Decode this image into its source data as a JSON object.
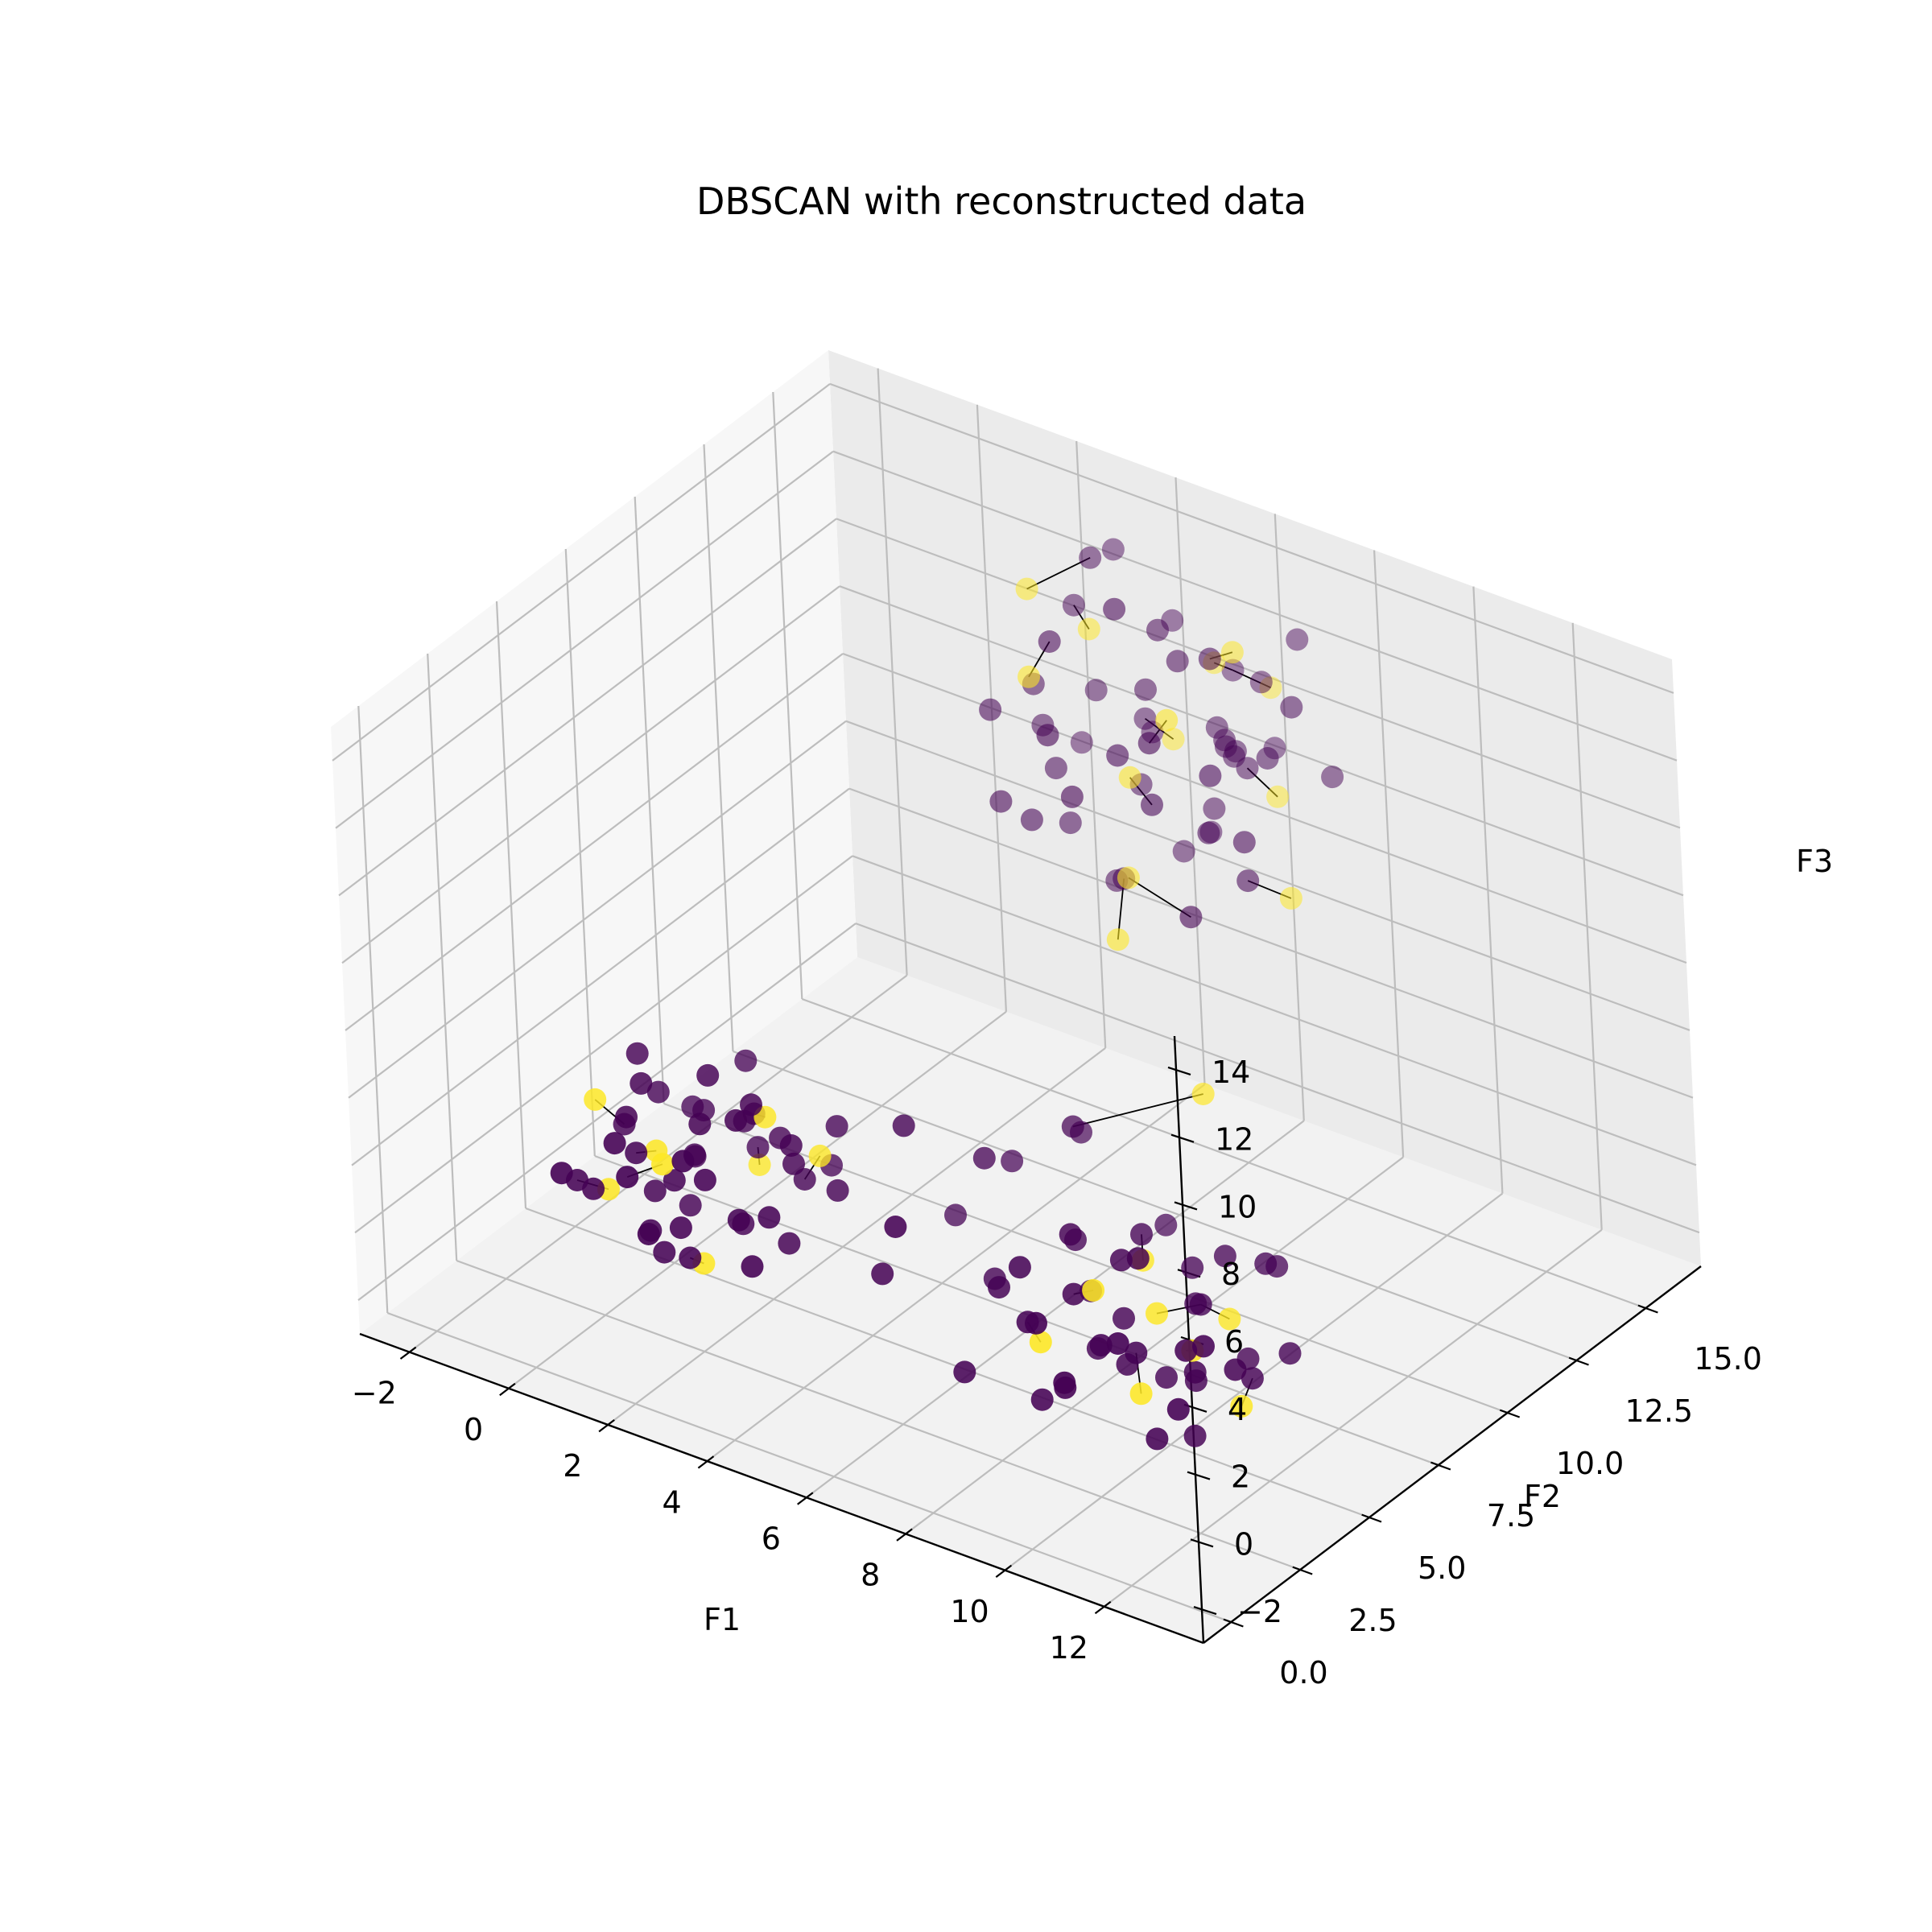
{
  "chart_data": {
    "type": "scatter",
    "projection": "3d",
    "title": "DBSCAN with reconstructed data",
    "xlabel": "F1",
    "ylabel": "F2",
    "zlabel": "F3",
    "xlim": [
      -3,
      14
    ],
    "ylim": [
      -1,
      17
    ],
    "zlim": [
      -3,
      15
    ],
    "xticks": [
      -2,
      0,
      2,
      4,
      6,
      8,
      10,
      12
    ],
    "xtick_labels": [
      "−2",
      "0",
      "2",
      "4",
      "6",
      "8",
      "10",
      "12"
    ],
    "yticks": [
      0,
      2.5,
      5,
      7.5,
      10,
      12.5,
      15
    ],
    "ytick_labels": [
      "0.0",
      "2.5",
      "5.0",
      "7.5",
      "10.0",
      "12.5",
      "15.0"
    ],
    "zticks": [
      -2,
      0,
      2,
      4,
      6,
      8,
      10,
      12,
      14
    ],
    "ztick_labels": [
      "−2",
      "0",
      "2",
      "4",
      "6",
      "8",
      "10",
      "12",
      "14"
    ],
    "grid": true,
    "colors": {
      "cluster": "#440154",
      "noise": "#fde725",
      "link": "#000000"
    },
    "series": [
      {
        "color": "#440154",
        "points": [
          [
            0.6,
            3.2,
            -0.6
          ],
          [
            -0.3,
            2.8,
            0.4
          ],
          [
            0.2,
            4.1,
            -0.2
          ],
          [
            0.9,
            3.6,
            0.8
          ],
          [
            1.4,
            2.9,
            0.1
          ],
          [
            -0.6,
            4.5,
            1.1
          ],
          [
            0.4,
            5.2,
            0.3
          ],
          [
            1.8,
            4.4,
            -0.5
          ],
          [
            1.1,
            5.8,
            1.3
          ],
          [
            -0.2,
            3.9,
            1.9
          ],
          [
            2.3,
            3.4,
            0.5
          ],
          [
            0.7,
            2.3,
            1.6
          ],
          [
            1.6,
            5.3,
            2.1
          ],
          [
            0.1,
            6.1,
            0.9
          ],
          [
            2.6,
            4.9,
            1.4
          ],
          [
            -0.8,
            3.1,
            0.2
          ],
          [
            1.3,
            3.9,
            2.5
          ],
          [
            0.5,
            4.8,
            -0.9
          ],
          [
            2.0,
            2.8,
            1.9
          ],
          [
            -0.4,
            5.4,
            1.6
          ],
          [
            2.9,
            4.1,
            -0.3
          ],
          [
            1.0,
            6.4,
            0.1
          ],
          [
            0.3,
            2.6,
            2.2
          ],
          [
            1.7,
            6.0,
            1.0
          ],
          [
            3.1,
            3.1,
            1.2
          ],
          [
            -0.1,
            4.3,
            2.7
          ],
          [
            2.4,
            5.6,
            0.4
          ],
          [
            0.8,
            3.3,
            -1.2
          ],
          [
            1.9,
            4.7,
            2.9
          ],
          [
            -0.7,
            2.4,
            0.9
          ],
          [
            2.7,
            6.3,
            1.7
          ],
          [
            1.2,
            2.1,
            0.3
          ],
          [
            0.0,
            5.9,
            -0.4
          ],
          [
            3.3,
            5.2,
            0.8
          ],
          [
            2.1,
            3.8,
            3.1
          ],
          [
            0.6,
            6.8,
            2.2
          ],
          [
            1.5,
            3.0,
            -0.8
          ],
          [
            -0.5,
            4.9,
            3.0
          ],
          [
            3.0,
            2.6,
            0.0
          ],
          [
            1.1,
            4.6,
            3.4
          ],
          [
            2.2,
            6.9,
            -0.1
          ],
          [
            0.2,
            3.5,
            1.3
          ],
          [
            1.8,
            2.4,
            2.6
          ],
          [
            2.8,
            4.5,
            2.3
          ],
          [
            -0.3,
            6.4,
            0.6
          ],
          [
            9.6,
            4.3,
            -0.4
          ],
          [
            10.2,
            3.6,
            0.7
          ],
          [
            9.1,
            5.1,
            0.2
          ],
          [
            10.7,
            4.8,
            -0.6
          ],
          [
            9.9,
            2.9,
            1.2
          ],
          [
            8.8,
            3.9,
            1.5
          ],
          [
            11.1,
            4.1,
            0.3
          ],
          [
            10.4,
            5.6,
            1.0
          ],
          [
            9.3,
            2.6,
            -0.2
          ],
          [
            8.6,
            5.0,
            -0.9
          ],
          [
            11.4,
            3.3,
            1.6
          ],
          [
            10.0,
            6.1,
            0.5
          ],
          [
            9.7,
            1.9,
            0.6
          ],
          [
            11.8,
            4.9,
            0.0
          ],
          [
            8.9,
            6.2,
            1.9
          ],
          [
            10.6,
            2.3,
            2.0
          ],
          [
            9.4,
            4.6,
            2.4
          ],
          [
            11.2,
            5.8,
            -0.3
          ],
          [
            8.3,
            3.1,
            0.9
          ],
          [
            10.9,
            3.0,
            -1.1
          ],
          [
            9.8,
            5.3,
            -1.3
          ],
          [
            12.1,
            3.8,
            1.1
          ],
          [
            8.5,
            4.4,
            2.8
          ],
          [
            10.3,
            6.7,
            1.7
          ],
          [
            11.6,
            2.6,
            0.4
          ],
          [
            9.0,
            2.2,
            1.8
          ],
          [
            12.3,
            5.4,
            0.7
          ],
          [
            10.1,
            4.0,
            3.2
          ],
          [
            8.1,
            5.7,
            0.1
          ],
          [
            11.3,
            6.4,
            2.2
          ],
          [
            9.5,
            6.9,
            0.8
          ],
          [
            12.0,
            2.9,
            2.3
          ],
          [
            10.8,
            4.5,
            -2.0
          ],
          [
            8.7,
            2.8,
            -1.0
          ],
          [
            11.0,
            7.3,
            1.4
          ],
          [
            6.2,
            5.6,
            -0.5
          ],
          [
            5.4,
            6.8,
            1.9
          ],
          [
            7.1,
            4.2,
            0.6
          ],
          [
            6.6,
            7.9,
            2.8
          ],
          [
            4.9,
            3.9,
            0.0
          ],
          [
            7.6,
            6.1,
            1.1
          ],
          [
            5.8,
            2.9,
            2.5
          ],
          [
            8.0,
            8.6,
            0.2
          ],
          [
            4.6,
            5.4,
            3.3
          ],
          [
            6.9,
            3.2,
            -1.4
          ],
          [
            5.2,
            8.1,
            0.9
          ],
          [
            7.9,
            3.6,
            2.0
          ],
          [
            6.0,
            9.2,
            1.5
          ],
          [
            4.4,
            7.4,
            -0.7
          ],
          [
            3.5,
            13.6,
            6.6
          ],
          [
            4.4,
            14.6,
            7.6
          ],
          [
            5.6,
            12.9,
            8.7
          ],
          [
            3.1,
            15.4,
            9.2
          ],
          [
            6.5,
            13.3,
            8.1
          ],
          [
            4.0,
            12.1,
            10.4
          ],
          [
            5.2,
            15.6,
            6.0
          ],
          [
            2.7,
            13.9,
            10.1
          ],
          [
            6.9,
            14.8,
            9.6
          ],
          [
            3.8,
            16.1,
            7.9
          ],
          [
            5.9,
            12.4,
            11.0
          ],
          [
            4.6,
            13.5,
            5.6
          ],
          [
            2.5,
            14.5,
            8.4
          ],
          [
            6.2,
            15.9,
            10.8
          ],
          [
            5.0,
            12.8,
            9.9
          ],
          [
            3.3,
            12.6,
            7.2
          ],
          [
            7.2,
            13.4,
            7.0
          ],
          [
            4.2,
            16.3,
            11.3
          ],
          [
            5.5,
            14.2,
            12.1
          ],
          [
            2.9,
            15.1,
            11.8
          ],
          [
            6.7,
            12.2,
            6.4
          ],
          [
            3.6,
            13.0,
            12.4
          ],
          [
            4.8,
            15.3,
            5.4
          ],
          [
            7.5,
            14.7,
            11.5
          ],
          [
            5.3,
            13.9,
            13.1
          ],
          [
            2.2,
            13.2,
            9.5
          ],
          [
            6.0,
            16.6,
            8.3
          ],
          [
            4.1,
            14.1,
            4.9
          ],
          [
            7.8,
            15.5,
            9.1
          ],
          [
            3.0,
            16.4,
            12.7
          ],
          [
            5.7,
            14.9,
            7.4
          ],
          [
            4.5,
            12.0,
            8.9
          ],
          [
            6.4,
            13.8,
            12.9
          ],
          [
            3.4,
            14.9,
            13.6
          ],
          [
            5.1,
            16.8,
            10.0
          ],
          [
            7.0,
            12.6,
            10.5
          ],
          [
            2.4,
            16.0,
            6.9
          ],
          [
            6.8,
            16.2,
            12.2
          ],
          [
            4.9,
            13.1,
            14.0
          ],
          [
            3.9,
            15.7,
            8.6
          ],
          [
            5.8,
            15.2,
            9.3
          ],
          [
            6.1,
            15.0,
            9.1
          ],
          [
            5.9,
            15.4,
            8.9
          ],
          [
            6.3,
            15.1,
            8.8
          ],
          [
            6.0,
            14.9,
            9.4
          ],
          [
            5.6,
            15.3,
            9.5
          ],
          [
            4.7,
            14.4,
            10.7
          ],
          [
            3.2,
            13.7,
            8.0
          ],
          [
            7.4,
            13.0,
            8.5
          ],
          [
            2.8,
            12.4,
            7.6
          ]
        ]
      },
      {
        "color": "#fde725",
        "points": [
          [
            0.5,
            3.7,
            1.4
          ],
          [
            1.2,
            2.7,
            2.0
          ],
          [
            -0.4,
            3.5,
            -0.1
          ],
          [
            2.0,
            5.0,
            2.4
          ],
          [
            0.9,
            6.6,
            -0.6
          ],
          [
            -1.0,
            4.2,
            1.8
          ],
          [
            1.6,
            3.3,
            -1.1
          ],
          [
            2.5,
            6.0,
            0.9
          ],
          [
            9.9,
            4.9,
            0.9
          ],
          [
            10.5,
            3.2,
            -0.1
          ],
          [
            9.2,
            5.7,
            1.6
          ],
          [
            11.3,
            3.7,
            1.3
          ],
          [
            10.8,
            5.9,
            0.6
          ],
          [
            9.5,
            3.4,
            2.3
          ],
          [
            11.9,
            4.3,
            -0.4
          ],
          [
            8.9,
            2.5,
            1.0
          ],
          [
            5.0,
            13.2,
            9.0
          ],
          [
            4.4,
            15.8,
            8.2
          ],
          [
            6.1,
            12.7,
            11.6
          ],
          [
            3.6,
            14.4,
            11.9
          ],
          [
            6.6,
            15.6,
            7.8
          ],
          [
            4.9,
            16.5,
            10.3
          ],
          [
            5.4,
            12.3,
            6.8
          ],
          [
            2.6,
            14.0,
            12.8
          ],
          [
            7.6,
            14.2,
            6.2
          ],
          [
            3.2,
            12.9,
            11.2
          ],
          [
            6.4,
            14.6,
            12.6
          ],
          [
            5.8,
            16.9,
            9.8
          ],
          [
            8.6,
            9.1,
            4.1
          ],
          [
            5.3,
            12.0,
            5.1
          ]
        ]
      }
    ]
  }
}
